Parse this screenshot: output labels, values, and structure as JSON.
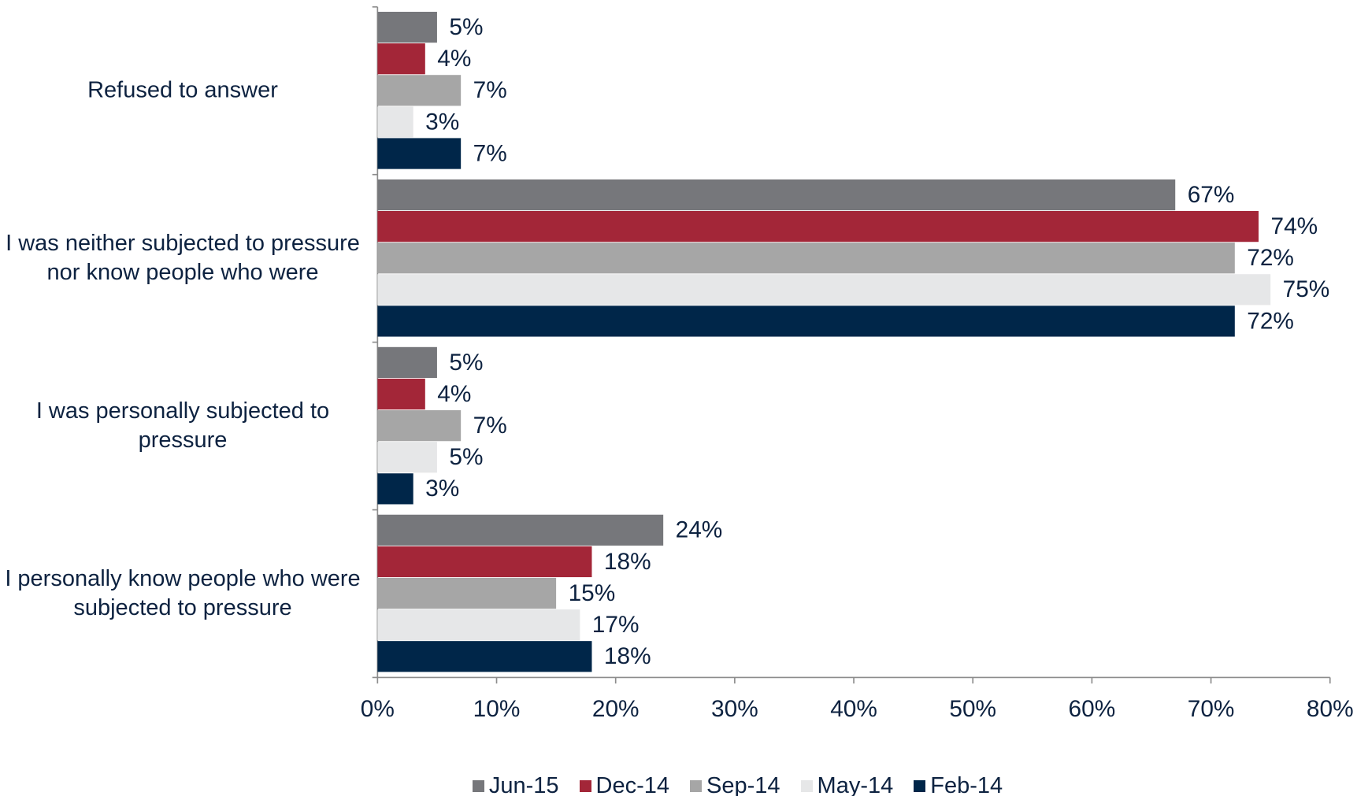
{
  "chart_data": {
    "type": "bar",
    "orientation": "horizontal",
    "categories": [
      "Refused to answer",
      "I was neither subjected to pressure nor know people who were",
      "I was personally subjected to pressure",
      "I personally know people who were subjected to pressure"
    ],
    "series": [
      {
        "name": "Jun-15",
        "color": "#76777b",
        "values": [
          5,
          67,
          5,
          24
        ],
        "value_labels": [
          "5%",
          "67%",
          "5%",
          "24%"
        ]
      },
      {
        "name": "Dec-14",
        "color": "#a32638",
        "values": [
          4,
          74,
          4,
          18
        ],
        "value_labels": [
          "4%",
          "74%",
          "4%",
          "18%"
        ]
      },
      {
        "name": "Sep-14",
        "color": "#a6a6a6",
        "values": [
          7,
          72,
          7,
          15
        ],
        "value_labels": [
          "7%",
          "72%",
          "7%",
          "15%"
        ]
      },
      {
        "name": "May-14",
        "color": "#e6e7e8",
        "values": [
          3,
          75,
          5,
          17
        ],
        "value_labels": [
          "3%",
          "75%",
          "5%",
          "17%"
        ]
      },
      {
        "name": "Feb-14",
        "color": "#002649",
        "values": [
          7,
          72,
          3,
          18
        ],
        "value_labels": [
          "7%",
          "72%",
          "3%",
          "18%"
        ]
      }
    ],
    "xlim": [
      0,
      80
    ],
    "xticks": [
      {
        "value": 0,
        "label": "0%"
      },
      {
        "value": 10,
        "label": "10%"
      },
      {
        "value": 20,
        "label": "20%"
      },
      {
        "value": 30,
        "label": "30%"
      },
      {
        "value": 40,
        "label": "40%"
      },
      {
        "value": 50,
        "label": "50%"
      },
      {
        "value": 60,
        "label": "60%"
      },
      {
        "value": 70,
        "label": "70%"
      },
      {
        "value": 80,
        "label": "80%"
      }
    ],
    "legend": "bottom"
  }
}
